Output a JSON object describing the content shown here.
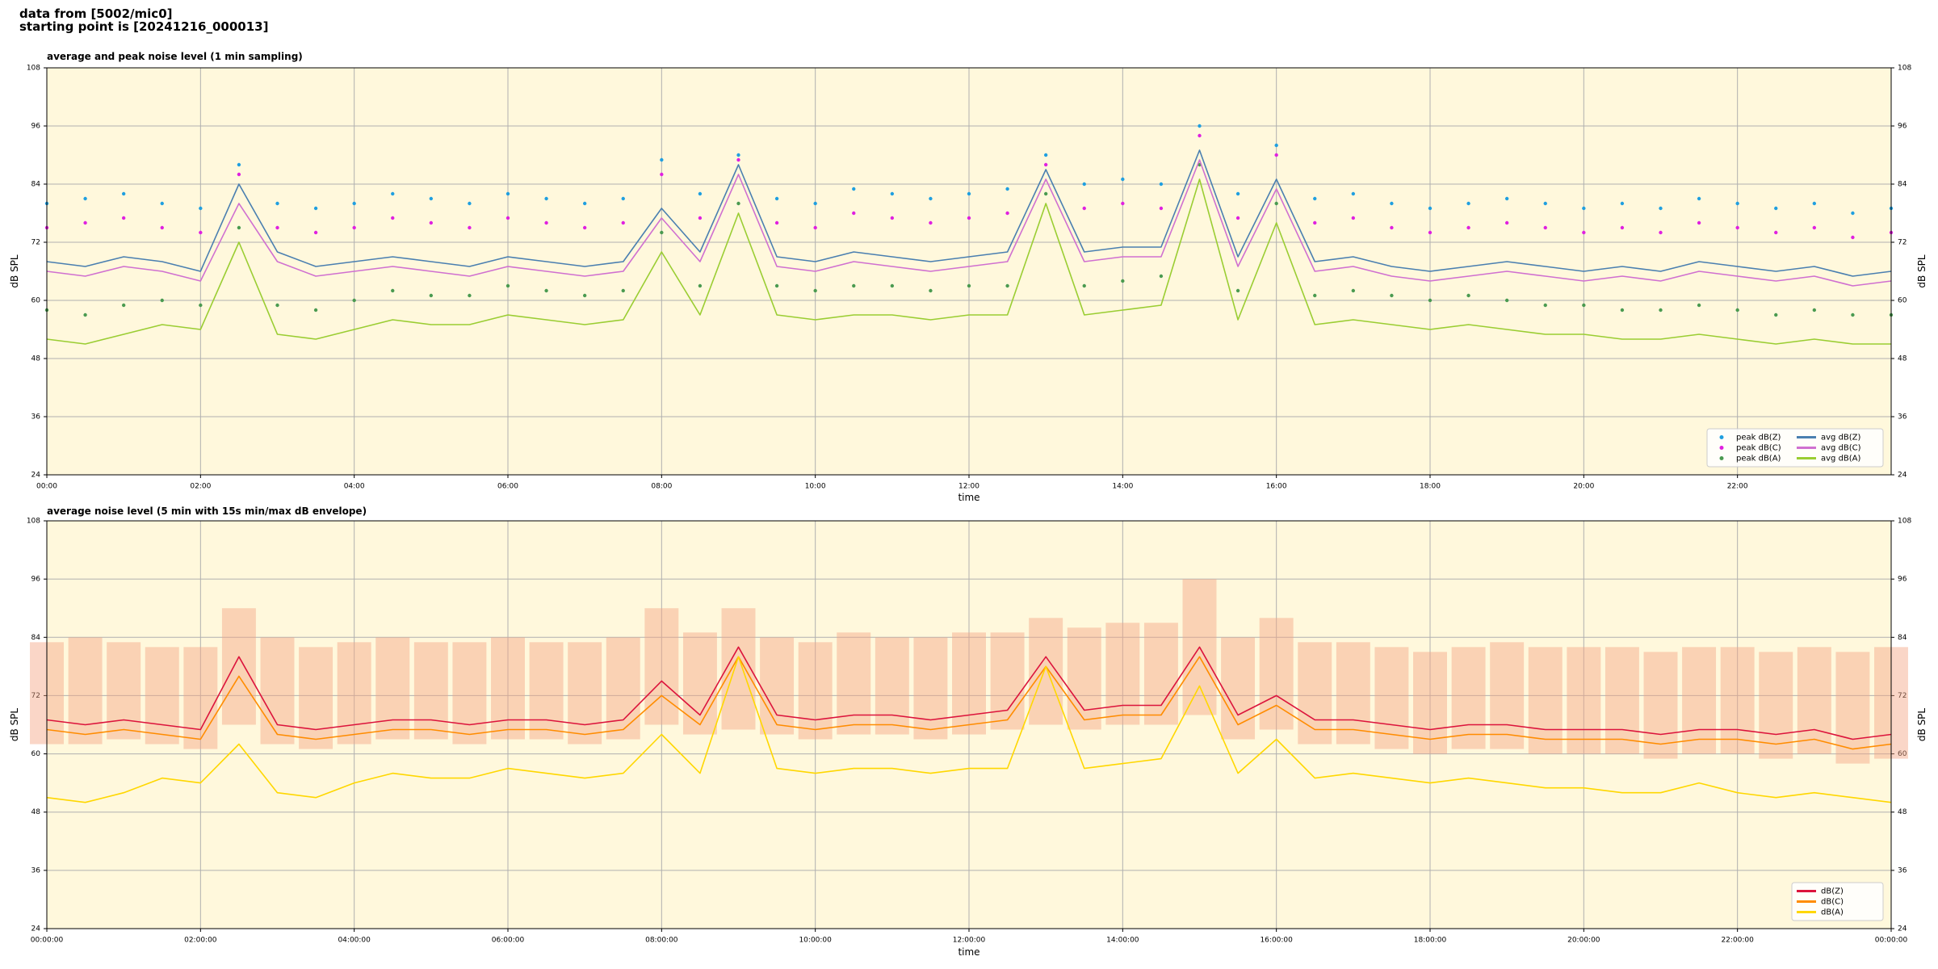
{
  "header": [
    "data from [5002/mic0]",
    "starting point is [20241216_000013]"
  ],
  "chart_data": [
    {
      "type": "line",
      "title": "average and peak noise level (1 min sampling)",
      "xlabel": "time",
      "ylabel": "dB SPL",
      "x": [
        0,
        0.5,
        1,
        1.5,
        2,
        2.5,
        3,
        3.5,
        4,
        4.5,
        5,
        5.5,
        6,
        6.5,
        7,
        7.5,
        8,
        8.5,
        9,
        9.5,
        10,
        10.5,
        11,
        11.5,
        12,
        12.5,
        13,
        13.5,
        14,
        14.5,
        15,
        15.5,
        16,
        16.5,
        17,
        17.5,
        18,
        18.5,
        19,
        19.5,
        20,
        20.5,
        21,
        21.5,
        22,
        22.5,
        23,
        23.5,
        24
      ],
      "xlim": [
        0,
        24
      ],
      "xticks": [
        {
          "value": 0,
          "label": "00:00"
        },
        {
          "value": 2,
          "label": "02:00"
        },
        {
          "value": 4,
          "label": "04:00"
        },
        {
          "value": 6,
          "label": "06:00"
        },
        {
          "value": 8,
          "label": "08:00"
        },
        {
          "value": 10,
          "label": "10:00"
        },
        {
          "value": 12,
          "label": "12:00"
        },
        {
          "value": 14,
          "label": "14:00"
        },
        {
          "value": 16,
          "label": "16:00"
        },
        {
          "value": 18,
          "label": "18:00"
        },
        {
          "value": 20,
          "label": "20:00"
        },
        {
          "value": 22,
          "label": "22:00"
        }
      ],
      "ylim": [
        24,
        108
      ],
      "yticks": [
        24,
        36,
        48,
        60,
        72,
        84,
        96,
        108
      ],
      "grid": true,
      "legend": "lower right",
      "legend_columns": 2,
      "series": [
        {
          "name": "peak dB(Z)",
          "type": "scatter",
          "color": "#1f9fe0",
          "values": [
            80,
            81,
            82,
            80,
            79,
            88,
            80,
            79,
            80,
            82,
            81,
            80,
            82,
            81,
            80,
            81,
            89,
            82,
            90,
            81,
            80,
            83,
            82,
            81,
            82,
            83,
            90,
            84,
            85,
            84,
            96,
            82,
            92,
            81,
            82,
            80,
            79,
            80,
            81,
            80,
            79,
            80,
            79,
            81,
            80,
            79,
            80,
            78,
            79
          ]
        },
        {
          "name": "peak dB(C)",
          "type": "scatter",
          "color": "#e020e0",
          "values": [
            75,
            76,
            77,
            75,
            74,
            86,
            75,
            74,
            75,
            77,
            76,
            75,
            77,
            76,
            75,
            76,
            86,
            77,
            89,
            76,
            75,
            78,
            77,
            76,
            77,
            78,
            88,
            79,
            80,
            79,
            94,
            77,
            90,
            76,
            77,
            75,
            74,
            75,
            76,
            75,
            74,
            75,
            74,
            76,
            75,
            74,
            75,
            73,
            74
          ]
        },
        {
          "name": "peak dB(A)",
          "type": "scatter",
          "color": "#4a9a50",
          "values": [
            58,
            57,
            59,
            60,
            59,
            75,
            59,
            58,
            60,
            62,
            61,
            61,
            63,
            62,
            61,
            62,
            74,
            63,
            80,
            63,
            62,
            63,
            63,
            62,
            63,
            63,
            82,
            63,
            64,
            65,
            88,
            62,
            80,
            61,
            62,
            61,
            60,
            61,
            60,
            59,
            59,
            58,
            58,
            59,
            58,
            57,
            58,
            57,
            57
          ]
        },
        {
          "name": "avg dB(Z)",
          "type": "line",
          "color": "#4a7fb0",
          "values": [
            68,
            67,
            69,
            68,
            66,
            84,
            70,
            67,
            68,
            69,
            68,
            67,
            69,
            68,
            67,
            68,
            79,
            70,
            88,
            69,
            68,
            70,
            69,
            68,
            69,
            70,
            87,
            70,
            71,
            71,
            91,
            69,
            85,
            68,
            69,
            67,
            66,
            67,
            68,
            67,
            66,
            67,
            66,
            68,
            67,
            66,
            67,
            65,
            66
          ]
        },
        {
          "name": "avg dB(C)",
          "type": "line",
          "color": "#d070d0",
          "values": [
            66,
            65,
            67,
            66,
            64,
            80,
            68,
            65,
            66,
            67,
            66,
            65,
            67,
            66,
            65,
            66,
            77,
            68,
            86,
            67,
            66,
            68,
            67,
            66,
            67,
            68,
            85,
            68,
            69,
            69,
            89,
            67,
            83,
            66,
            67,
            65,
            64,
            65,
            66,
            65,
            64,
            65,
            64,
            66,
            65,
            64,
            65,
            63,
            64
          ]
        },
        {
          "name": "avg dB(A)",
          "type": "line",
          "color": "#9acd32",
          "values": [
            52,
            51,
            53,
            55,
            54,
            72,
            53,
            52,
            54,
            56,
            55,
            55,
            57,
            56,
            55,
            56,
            70,
            57,
            78,
            57,
            56,
            57,
            57,
            56,
            57,
            57,
            80,
            57,
            58,
            59,
            85,
            56,
            76,
            55,
            56,
            55,
            54,
            55,
            54,
            53,
            53,
            52,
            52,
            53,
            52,
            51,
            52,
            51,
            51
          ]
        }
      ]
    },
    {
      "type": "line",
      "title": "average noise level (5 min with 15s min/max dB envelope)",
      "xlabel": "time",
      "ylabel": "dB SPL",
      "x": [
        0,
        0.5,
        1,
        1.5,
        2,
        2.5,
        3,
        3.5,
        4,
        4.5,
        5,
        5.5,
        6,
        6.5,
        7,
        7.5,
        8,
        8.5,
        9,
        9.5,
        10,
        10.5,
        11,
        11.5,
        12,
        12.5,
        13,
        13.5,
        14,
        14.5,
        15,
        15.5,
        16,
        16.5,
        17,
        17.5,
        18,
        18.5,
        19,
        19.5,
        20,
        20.5,
        21,
        21.5,
        22,
        22.5,
        23,
        23.5,
        24
      ],
      "xlim": [
        0,
        24
      ],
      "xticks": [
        {
          "value": 0,
          "label": "00:00:00"
        },
        {
          "value": 2,
          "label": "02:00:00"
        },
        {
          "value": 4,
          "label": "04:00:00"
        },
        {
          "value": 6,
          "label": "06:00:00"
        },
        {
          "value": 8,
          "label": "08:00:00"
        },
        {
          "value": 10,
          "label": "10:00:00"
        },
        {
          "value": 12,
          "label": "12:00:00"
        },
        {
          "value": 14,
          "label": "14:00:00"
        },
        {
          "value": 16,
          "label": "16:00:00"
        },
        {
          "value": 18,
          "label": "18:00:00"
        },
        {
          "value": 20,
          "label": "20:00:00"
        },
        {
          "value": 22,
          "label": "22:00:00"
        },
        {
          "value": 24,
          "label": "00:00:00"
        }
      ],
      "ylim": [
        24,
        108
      ],
      "yticks": [
        24,
        36,
        48,
        60,
        72,
        84,
        96,
        108
      ],
      "grid": true,
      "legend": "lower right",
      "legend_columns": 1,
      "envelope": {
        "color": "#f4a582",
        "low": [
          62,
          62,
          63,
          62,
          61,
          66,
          62,
          61,
          62,
          63,
          63,
          62,
          63,
          63,
          62,
          63,
          66,
          64,
          65,
          64,
          63,
          64,
          64,
          63,
          64,
          65,
          66,
          65,
          66,
          66,
          68,
          63,
          65,
          62,
          62,
          61,
          60,
          61,
          61,
          60,
          60,
          60,
          59,
          60,
          60,
          59,
          60,
          58,
          59
        ],
        "high": [
          83,
          84,
          83,
          82,
          82,
          90,
          84,
          82,
          83,
          84,
          83,
          83,
          84,
          83,
          83,
          84,
          90,
          85,
          90,
          84,
          83,
          85,
          84,
          84,
          85,
          85,
          88,
          86,
          87,
          87,
          96,
          84,
          88,
          83,
          83,
          82,
          81,
          82,
          83,
          82,
          82,
          82,
          81,
          82,
          82,
          81,
          82,
          81,
          82
        ]
      },
      "series": [
        {
          "name": "dB(Z)",
          "type": "line",
          "color": "#dc143c",
          "values": [
            67,
            66,
            67,
            66,
            65,
            80,
            66,
            65,
            66,
            67,
            67,
            66,
            67,
            67,
            66,
            67,
            75,
            68,
            82,
            68,
            67,
            68,
            68,
            67,
            68,
            69,
            80,
            69,
            70,
            70,
            82,
            68,
            72,
            67,
            67,
            66,
            65,
            66,
            66,
            65,
            65,
            65,
            64,
            65,
            65,
            64,
            65,
            63,
            64
          ]
        },
        {
          "name": "dB(C)",
          "type": "line",
          "color": "#ff8c00",
          "values": [
            65,
            64,
            65,
            64,
            63,
            76,
            64,
            63,
            64,
            65,
            65,
            64,
            65,
            65,
            64,
            65,
            72,
            66,
            80,
            66,
            65,
            66,
            66,
            65,
            66,
            67,
            78,
            67,
            68,
            68,
            80,
            66,
            70,
            65,
            65,
            64,
            63,
            64,
            64,
            63,
            63,
            63,
            62,
            63,
            63,
            62,
            63,
            61,
            62
          ]
        },
        {
          "name": "dB(A)",
          "type": "line",
          "color": "#ffd700",
          "values": [
            51,
            50,
            52,
            55,
            54,
            62,
            52,
            51,
            54,
            56,
            55,
            55,
            57,
            56,
            55,
            56,
            64,
            56,
            80,
            57,
            56,
            57,
            57,
            56,
            57,
            57,
            78,
            57,
            58,
            59,
            74,
            56,
            63,
            55,
            56,
            55,
            54,
            55,
            54,
            53,
            53,
            52,
            52,
            54,
            52,
            51,
            52,
            51,
            50
          ]
        }
      ]
    }
  ]
}
